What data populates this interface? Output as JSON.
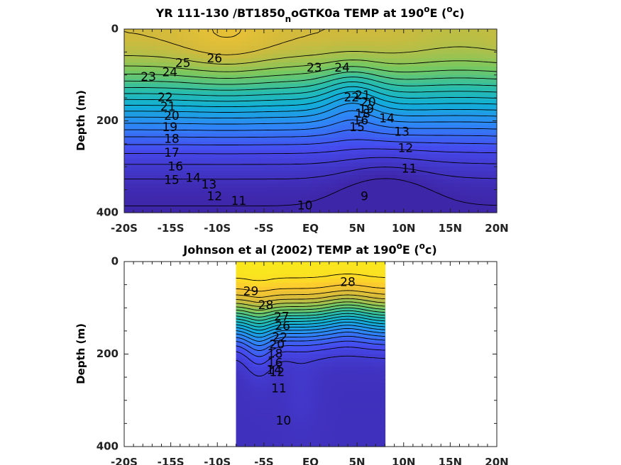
{
  "chart_data": [
    {
      "type": "heatmap",
      "subtype": "filled-contour",
      "title_parts": [
        "YR 111-130 /BT1850",
        "n",
        "oGTK0a TEMP at 190",
        "o",
        "E (",
        "o",
        "c)"
      ],
      "ylabel": "Depth (m)",
      "x_ticks": [
        "-20S",
        "-15S",
        "-10S",
        "-5S",
        "EQ",
        "5N",
        "10N",
        "15N",
        "20N"
      ],
      "x_tick_values": [
        -20,
        -15,
        -10,
        -5,
        0,
        5,
        10,
        15,
        20
      ],
      "y_ticks": [
        "0",
        "200",
        "400"
      ],
      "y_tick_values": [
        0,
        200,
        400
      ],
      "xlim": [
        -20,
        20
      ],
      "ylim": [
        0,
        400
      ],
      "y_reversed": true,
      "data_extent": [
        -20,
        20
      ],
      "contour_labels": [
        {
          "text": "26",
          "x": -10.3,
          "y": 65
        },
        {
          "text": "25",
          "x": -13.7,
          "y": 75
        },
        {
          "text": "24",
          "x": -15.1,
          "y": 95
        },
        {
          "text": "23",
          "x": -17.4,
          "y": 105
        },
        {
          "text": "23",
          "x": 0.4,
          "y": 85
        },
        {
          "text": "24",
          "x": 3.4,
          "y": 85
        },
        {
          "text": "22",
          "x": -15.6,
          "y": 150
        },
        {
          "text": "21",
          "x": -15.3,
          "y": 170
        },
        {
          "text": "20",
          "x": -14.9,
          "y": 190
        },
        {
          "text": "19",
          "x": -15.1,
          "y": 215
        },
        {
          "text": "18",
          "x": -14.9,
          "y": 240
        },
        {
          "text": "17",
          "x": -14.9,
          "y": 270
        },
        {
          "text": "16",
          "x": -14.5,
          "y": 300
        },
        {
          "text": "15",
          "x": -14.9,
          "y": 330
        },
        {
          "text": "14",
          "x": -12.6,
          "y": 325
        },
        {
          "text": "13",
          "x": -10.9,
          "y": 340
        },
        {
          "text": "12",
          "x": -10.3,
          "y": 365
        },
        {
          "text": "11",
          "x": -7.7,
          "y": 375
        },
        {
          "text": "10",
          "x": -0.6,
          "y": 385
        },
        {
          "text": "9",
          "x": 5.8,
          "y": 365
        },
        {
          "text": "22",
          "x": 4.4,
          "y": 150
        },
        {
          "text": "21",
          "x": 5.6,
          "y": 145
        },
        {
          "text": "20",
          "x": 6.2,
          "y": 160
        },
        {
          "text": "19",
          "x": 6.0,
          "y": 175
        },
        {
          "text": "18",
          "x": 5.6,
          "y": 185
        },
        {
          "text": "16",
          "x": 5.4,
          "y": 200
        },
        {
          "text": "15",
          "x": 5.0,
          "y": 215
        },
        {
          "text": "14",
          "x": 8.2,
          "y": 195
        },
        {
          "text": "13",
          "x": 9.8,
          "y": 225
        },
        {
          "text": "12",
          "x": 10.2,
          "y": 260
        },
        {
          "text": "11",
          "x": 10.6,
          "y": 305
        }
      ]
    },
    {
      "type": "heatmap",
      "subtype": "filled-contour",
      "title_parts": [
        "Johnson et al (2002) TEMP at 190",
        "o",
        "E (",
        "o",
        "c)"
      ],
      "ylabel": "Depth (m)",
      "x_ticks": [
        "-20S",
        "-15S",
        "-10S",
        "-5S",
        "EQ",
        "5N",
        "10N",
        "15N",
        "20N"
      ],
      "x_tick_values": [
        -20,
        -15,
        -10,
        -5,
        0,
        5,
        10,
        15,
        20
      ],
      "y_ticks": [
        "0",
        "200",
        "400"
      ],
      "y_tick_values": [
        0,
        200,
        400
      ],
      "xlim": [
        -20,
        20
      ],
      "ylim": [
        0,
        400
      ],
      "y_reversed": true,
      "data_extent": [
        -8,
        8
      ],
      "contour_labels": [
        {
          "text": "29",
          "x": -6.4,
          "y": 65
        },
        {
          "text": "28",
          "x": -4.8,
          "y": 95
        },
        {
          "text": "28",
          "x": 4.0,
          "y": 45
        },
        {
          "text": "27",
          "x": -3.1,
          "y": 120
        },
        {
          "text": "26",
          "x": -3.0,
          "y": 140
        },
        {
          "text": "22",
          "x": -3.3,
          "y": 165
        },
        {
          "text": "20",
          "x": -3.6,
          "y": 180
        },
        {
          "text": "18",
          "x": -3.8,
          "y": 200
        },
        {
          "text": "16",
          "x": -3.8,
          "y": 220
        },
        {
          "text": "14",
          "x": -3.9,
          "y": 235
        },
        {
          "text": "12",
          "x": -3.6,
          "y": 240
        },
        {
          "text": "11",
          "x": -3.4,
          "y": 275
        },
        {
          "text": "10",
          "x": -2.9,
          "y": 345
        }
      ]
    }
  ]
}
